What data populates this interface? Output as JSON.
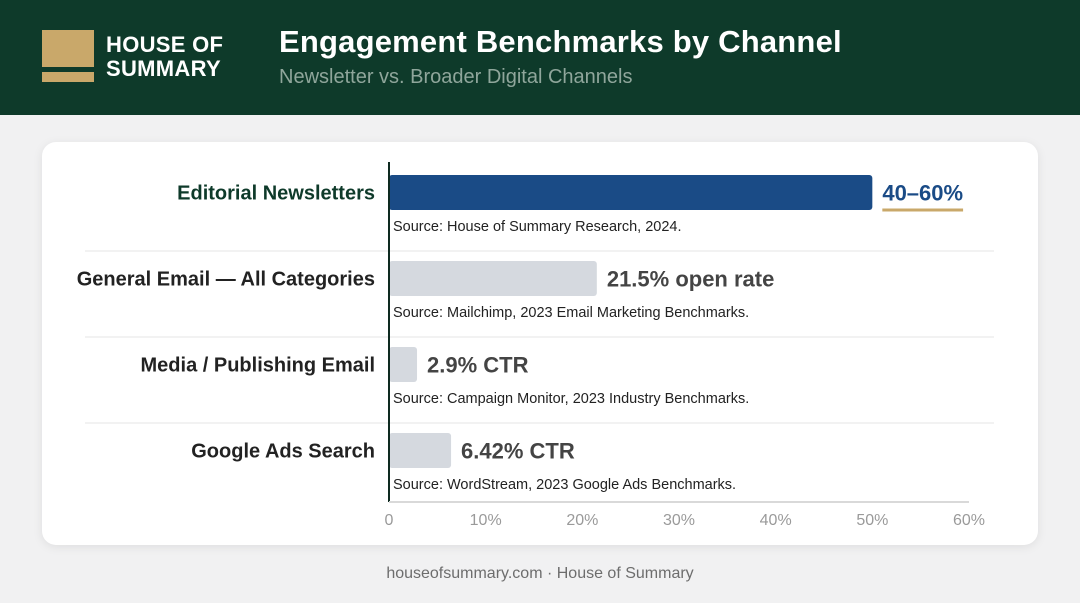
{
  "brand": {
    "line1": "HOUSE OF",
    "line2": "SUMMARY"
  },
  "header": {
    "title": "Engagement Benchmarks by Channel",
    "subtitle": "Newsletter vs. Broader Digital Channels"
  },
  "footer": {
    "text": "houseofsummary.com · House of Summary"
  },
  "colors": {
    "header_bg": "#0e3a2a",
    "accent_gold": "#c9a86a",
    "highlight_bar": "#1a4b86",
    "highlight_text": "#1a4b86",
    "muted_bar": "#d5d9df"
  },
  "chart_data": {
    "type": "bar",
    "orientation": "horizontal",
    "categories": [
      "Editorial Newsletters",
      "General Email — All Categories",
      "Media / Publishing Email",
      "Google Ads Search"
    ],
    "values": [
      50,
      21.5,
      2.9,
      6.42
    ],
    "range_low": [
      40,
      null,
      null,
      null
    ],
    "range_high": [
      60,
      null,
      null,
      null
    ],
    "value_labels": [
      "40–60%",
      "21.5% open rate",
      "2.9% CTR",
      "6.42% CTR"
    ],
    "sources": [
      "Source: House of Summary Research, 2024.",
      "Source: Mailchimp, 2023 Email Marketing Benchmarks.",
      "Source: Campaign Monitor, 2023 Industry Benchmarks.",
      "Source: WordStream, 2023 Google Ads Benchmarks."
    ],
    "highlighted": [
      true,
      false,
      false,
      false
    ],
    "xlim": [
      0,
      60
    ],
    "xticks": [
      "0",
      "10%",
      "20%",
      "30%",
      "40%",
      "50%",
      "60%"
    ],
    "xtick_values": [
      0,
      10,
      20,
      30,
      40,
      50,
      60
    ],
    "grid": false
  }
}
